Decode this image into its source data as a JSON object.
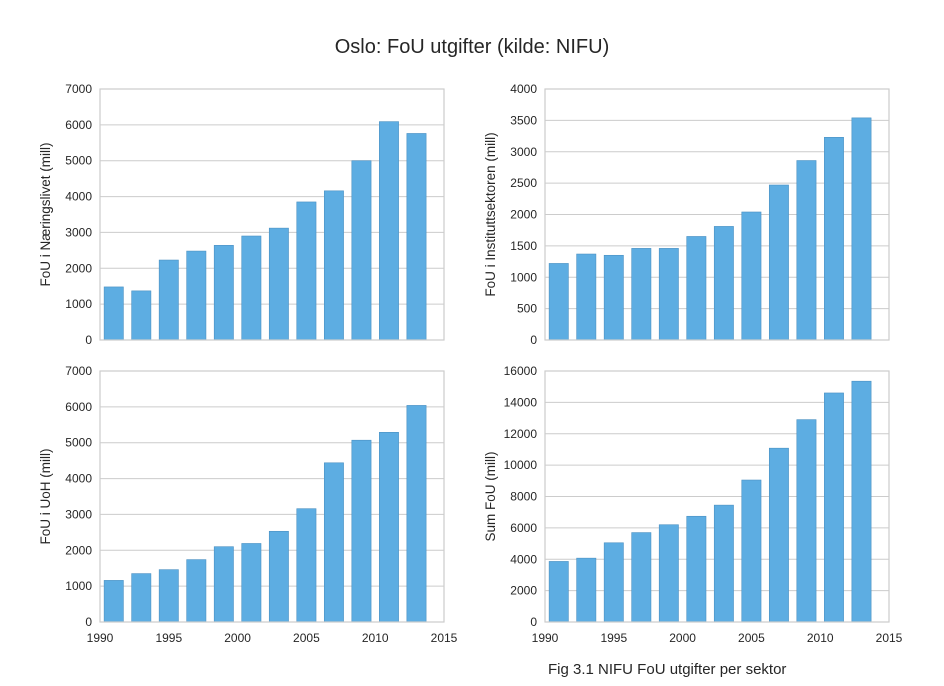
{
  "figure": {
    "title": "Oslo: FoU utgifter (kilde: NIFU)",
    "caption": "Fig 3.1 NIFU FoU utgifter per sektor"
  },
  "colors": {
    "bar": "#5DADE2",
    "bar_edge": "#4A90C2",
    "grid": "#CCCCCC",
    "frame": "#CCCCCC"
  },
  "chart_data": [
    {
      "type": "bar",
      "ylabel": "FoU i Næringslivet (mill)",
      "x": [
        1991,
        1993,
        1995,
        1997,
        1999,
        2001,
        2003,
        2005,
        2007,
        2009,
        2011,
        2013
      ],
      "values": [
        1480,
        1370,
        2230,
        2480,
        2640,
        2900,
        3120,
        3850,
        4160,
        5000,
        6090,
        5760
      ],
      "xlim": [
        1990,
        2015
      ],
      "ylim": [
        0,
        7000
      ],
      "yticks": [
        0,
        1000,
        2000,
        3000,
        4000,
        5000,
        6000,
        7000
      ],
      "xticks": [],
      "grid": true
    },
    {
      "type": "bar",
      "ylabel": "FoU i Instituttsektoren (mill)",
      "x": [
        1991,
        1993,
        1995,
        1997,
        1999,
        2001,
        2003,
        2005,
        2007,
        2009,
        2011,
        2013
      ],
      "values": [
        1220,
        1370,
        1350,
        1460,
        1460,
        1650,
        1810,
        2040,
        2470,
        2860,
        3230,
        3540
      ],
      "xlim": [
        1990,
        2015
      ],
      "ylim": [
        0,
        4000
      ],
      "yticks": [
        0,
        500,
        1000,
        1500,
        2000,
        2500,
        3000,
        3500,
        4000
      ],
      "xticks": [],
      "grid": true
    },
    {
      "type": "bar",
      "ylabel": "FoU i UoH (mill)",
      "x": [
        1991,
        1993,
        1995,
        1997,
        1999,
        2001,
        2003,
        2005,
        2007,
        2009,
        2011,
        2013
      ],
      "values": [
        1160,
        1350,
        1460,
        1740,
        2100,
        2190,
        2530,
        3160,
        4440,
        5070,
        5290,
        6040
      ],
      "xlim": [
        1990,
        2015
      ],
      "ylim": [
        0,
        7000
      ],
      "yticks": [
        0,
        1000,
        2000,
        3000,
        4000,
        5000,
        6000,
        7000
      ],
      "xticks": [
        1990,
        1995,
        2000,
        2005,
        2010,
        2015
      ],
      "grid": true
    },
    {
      "type": "bar",
      "ylabel": "Sum FoU (mill)",
      "x": [
        1991,
        1993,
        1995,
        1997,
        1999,
        2001,
        2003,
        2005,
        2007,
        2009,
        2011,
        2013
      ],
      "values": [
        3860,
        4070,
        5050,
        5700,
        6200,
        6740,
        7450,
        9050,
        11080,
        12900,
        14600,
        15350
      ],
      "xlim": [
        1990,
        2015
      ],
      "ylim": [
        0,
        16000
      ],
      "yticks": [
        0,
        2000,
        4000,
        6000,
        8000,
        10000,
        12000,
        14000,
        16000
      ],
      "xticks": [
        1990,
        1995,
        2000,
        2005,
        2010,
        2015
      ],
      "grid": true
    }
  ]
}
